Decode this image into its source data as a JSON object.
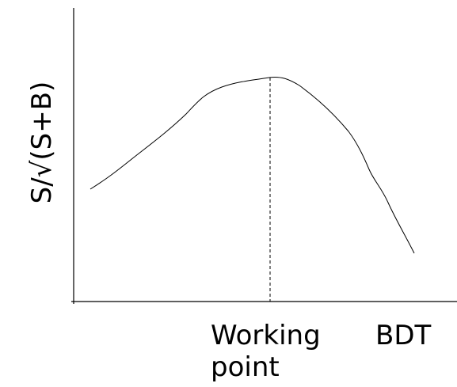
{
  "y_axis_label": "S/√(S+B)",
  "x_annotations": {
    "working_point": "Working point",
    "axis_name": "BDT"
  }
}
